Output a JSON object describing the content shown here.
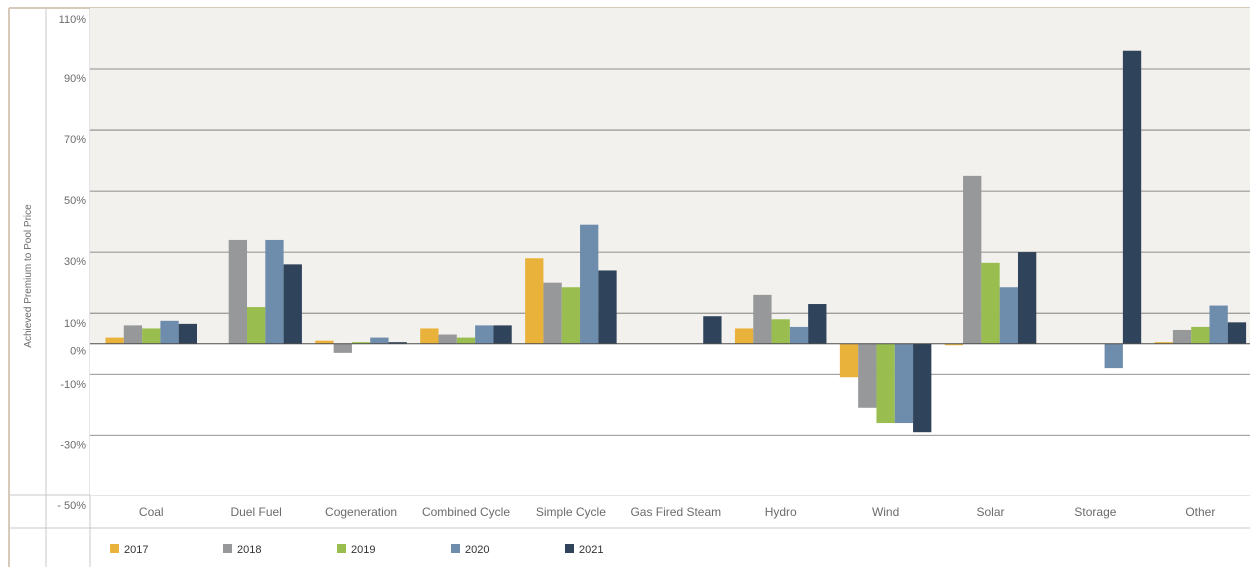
{
  "chart_data": {
    "type": "bar",
    "title": "",
    "xlabel": "",
    "ylabel": "Achieved Premium to Pool Price",
    "ylim": [
      -50,
      110
    ],
    "y_ticks": [
      "110%",
      "90%",
      "70%",
      "50%",
      "30%",
      "10%",
      "0%",
      "-10%",
      "-30%",
      "- 50%"
    ],
    "categories": [
      "Coal",
      "Duel Fuel",
      "Cogeneration",
      "Combined Cycle",
      "Simple Cycle",
      "Gas Fired Steam",
      "Hydro",
      "Wind",
      "Solar",
      "Storage",
      "Other"
    ],
    "series": [
      {
        "name": "2017",
        "color": "#e9b23a",
        "values": [
          2,
          0,
          1,
          5,
          28,
          0,
          5,
          -11,
          -0.5,
          0,
          0.5
        ]
      },
      {
        "name": "2018",
        "color": "#96989a",
        "values": [
          6,
          34,
          -3,
          3,
          20,
          0,
          16,
          -21,
          55,
          0,
          4.5
        ]
      },
      {
        "name": "2019",
        "color": "#99bd4f",
        "values": [
          5,
          12,
          0.5,
          2,
          18.5,
          0,
          8,
          -26,
          26.5,
          0,
          5.5
        ]
      },
      {
        "name": "2020",
        "color": "#6e8cab",
        "values": [
          7.5,
          34,
          2,
          6,
          39,
          0,
          5.5,
          -26,
          18.5,
          -8,
          12.5
        ]
      },
      {
        "name": "2021",
        "color": "#2f435a",
        "values": [
          6.5,
          26,
          0.5,
          6,
          24,
          9,
          13,
          -29,
          30,
          96,
          7
        ]
      }
    ],
    "grid": true,
    "legend": "bottom"
  }
}
